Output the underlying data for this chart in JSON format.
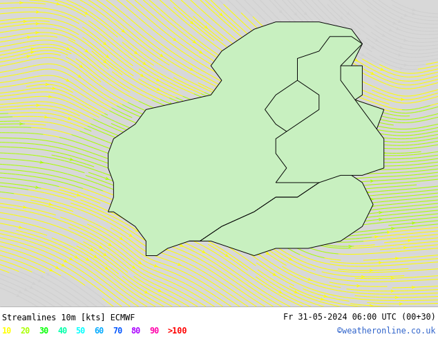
{
  "title_left": "Streamlines 10m [kts] ECMWF",
  "title_right": "Fr 31-05-2024 06:00 UTC (00+30)",
  "credit": "©weatheronline.co.uk",
  "legend_values": [
    "10",
    "20",
    "30",
    "40",
    "50",
    "60",
    "70",
    "80",
    "90",
    ">100"
  ],
  "legend_colors": [
    "#ffff00",
    "#aaff00",
    "#00ff00",
    "#00ffaa",
    "#00ffff",
    "#00aaff",
    "#0055ff",
    "#aa00ff",
    "#ff00aa",
    "#ff0000"
  ],
  "background_color": "#d8d8d8",
  "land_color": "#c8f0c0",
  "ocean_color": "#d8d8d8",
  "border_color": "#000000",
  "text_color": "#000000",
  "bottom_bg": "#ffffff",
  "figsize": [
    6.34,
    4.9
  ],
  "dpi": 100,
  "map_extent": [
    -5.5,
    35.0,
    51.5,
    72.5
  ],
  "speed_bounds": [
    0,
    10,
    20,
    30,
    40,
    50,
    60,
    70,
    80,
    90,
    100,
    500
  ],
  "stream_colors": [
    "#d0d0d0",
    "#ffff00",
    "#aaff00",
    "#00ff00",
    "#00ffaa",
    "#00ffff",
    "#00aaff",
    "#0055ff",
    "#aa00ff",
    "#ff00aa",
    "#ff0000"
  ]
}
